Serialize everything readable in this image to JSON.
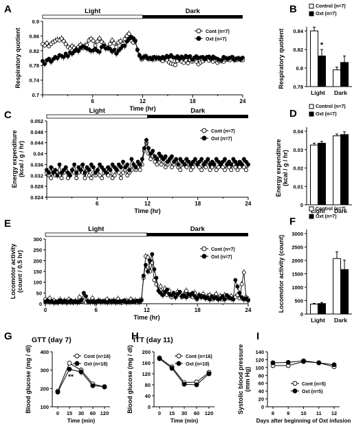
{
  "panel_letters": [
    "A",
    "B",
    "C",
    "D",
    "E",
    "F",
    "G",
    "H",
    "I"
  ],
  "chart_data": [
    {
      "panel": "A",
      "type": "line",
      "xlabel": "Time (hr)",
      "ylabel": "Respiratory quotient",
      "xlim": [
        0,
        24
      ],
      "ylim": [
        0.7,
        0.9
      ],
      "xticks": [
        "6",
        "12",
        "18",
        "24"
      ],
      "yticks": [
        "0.7",
        "0.74",
        "0.78",
        "0.82",
        "0.86",
        "0.9"
      ],
      "bands": {
        "light": "Light",
        "dark": "Dark"
      },
      "series": [
        {
          "name": "Cont (n=7)",
          "marker": "open",
          "values": [
            0.838,
            0.834,
            0.84,
            0.832,
            0.838,
            0.843,
            0.846,
            0.85,
            0.848,
            0.853,
            0.846,
            0.838,
            0.83,
            0.826,
            0.832,
            0.828,
            0.822,
            0.83,
            0.836,
            0.827,
            0.833,
            0.836,
            0.848,
            0.852,
            0.847,
            0.834,
            0.845,
            0.853,
            0.844,
            0.838,
            0.83,
            0.826,
            0.838,
            0.848,
            0.84,
            0.83,
            0.842,
            0.846,
            0.838,
            0.852,
            0.86,
            0.866,
            0.848,
            0.842,
            0.848,
            0.822,
            0.806,
            0.796,
            0.803,
            0.801,
            0.798,
            0.797,
            0.799,
            0.796,
            0.8,
            0.798,
            0.796,
            0.792,
            0.798,
            0.794,
            0.788,
            0.785,
            0.783,
            0.781,
            0.792,
            0.797,
            0.79,
            0.787,
            0.794,
            0.786,
            0.795,
            0.79,
            0.798,
            0.79,
            0.783,
            0.788,
            0.791,
            0.796,
            0.799,
            0.793,
            0.796,
            0.79,
            0.794,
            0.787,
            0.791,
            0.794,
            0.79,
            0.795,
            0.797,
            0.794,
            0.8,
            0.798,
            0.794,
            0.798,
            0.795,
            0.794
          ]
        },
        {
          "name": "Oxt (n=7)",
          "marker": "filled",
          "values": [
            0.792,
            0.784,
            0.794,
            0.798,
            0.79,
            0.797,
            0.803,
            0.8,
            0.808,
            0.806,
            0.803,
            0.812,
            0.805,
            0.815,
            0.812,
            0.818,
            0.824,
            0.819,
            0.828,
            0.832,
            0.83,
            0.826,
            0.824,
            0.82,
            0.821,
            0.826,
            0.82,
            0.817,
            0.83,
            0.834,
            0.826,
            0.828,
            0.825,
            0.818,
            0.822,
            0.812,
            0.82,
            0.826,
            0.833,
            0.833,
            0.845,
            0.852,
            0.858,
            0.854,
            0.846,
            0.823,
            0.808,
            0.8,
            0.802,
            0.806,
            0.799,
            0.801,
            0.797,
            0.803,
            0.8,
            0.802,
            0.799,
            0.803,
            0.8,
            0.806,
            0.803,
            0.808,
            0.802,
            0.801,
            0.805,
            0.799,
            0.804,
            0.8,
            0.806,
            0.803,
            0.805,
            0.796,
            0.801,
            0.805,
            0.8,
            0.802,
            0.803,
            0.798,
            0.803,
            0.804,
            0.799,
            0.804,
            0.8,
            0.798,
            0.795,
            0.794,
            0.803,
            0.8,
            0.798,
            0.801,
            0.803,
            0.795,
            0.799,
            0.8,
            0.797,
            0.801
          ]
        }
      ]
    },
    {
      "panel": "B",
      "type": "bar",
      "ylabel": "Respiratory quotient",
      "ylim": [
        0.78,
        0.84
      ],
      "yticks": [
        "0.78",
        "0.8",
        "0.82",
        "0.84"
      ],
      "categories": [
        "Light",
        "Dark"
      ],
      "series": [
        {
          "name": "Control (n=7)",
          "fill": "open",
          "values": [
            0.84,
            0.798
          ],
          "errors": [
            0.004,
            0.003
          ]
        },
        {
          "name": "Oxt (n=7)",
          "fill": "filled",
          "values": [
            0.813,
            0.806
          ],
          "errors": [
            0.007,
            0.007
          ]
        }
      ],
      "annotations": [
        "*"
      ]
    },
    {
      "panel": "C",
      "type": "line",
      "xlabel": "Time (hr)",
      "ylabel": "Energy expenditure (kcal / g / hr)",
      "xlim": [
        0,
        24
      ],
      "ylim": [
        0.024,
        0.052
      ],
      "xticks": [
        "6",
        "12",
        "18",
        "24"
      ],
      "yticks": [
        "0.024",
        "0.028",
        "0.032",
        "0.036",
        "0.04",
        "0.044",
        "0.048",
        "0.052"
      ],
      "bands": {
        "light": "Light",
        "dark": "Dark"
      },
      "series": [
        {
          "name": "Cont (n=7)",
          "marker": "open",
          "values": [
            0.033,
            0.032,
            0.031,
            0.034,
            0.032,
            0.033,
            0.032,
            0.031,
            0.033,
            0.034,
            0.031,
            0.032,
            0.034,
            0.033,
            0.031,
            0.033,
            0.035,
            0.033,
            0.031,
            0.034,
            0.032,
            0.031,
            0.033,
            0.032,
            0.034,
            0.032,
            0.031,
            0.033,
            0.034,
            0.032,
            0.033,
            0.031,
            0.032,
            0.034,
            0.033,
            0.031,
            0.033,
            0.034,
            0.032,
            0.033,
            0.034,
            0.036,
            0.034,
            0.035,
            0.034,
            0.036,
            0.041,
            0.044,
            0.04,
            0.038,
            0.039,
            0.037,
            0.036,
            0.038,
            0.036,
            0.037,
            0.035,
            0.036,
            0.038,
            0.035,
            0.036,
            0.037,
            0.035,
            0.034,
            0.036,
            0.037,
            0.035,
            0.036,
            0.034,
            0.035,
            0.037,
            0.036,
            0.035,
            0.034,
            0.036,
            0.035,
            0.037,
            0.034,
            0.035,
            0.036,
            0.034,
            0.035,
            0.036,
            0.035,
            0.034,
            0.036,
            0.035,
            0.034,
            0.036,
            0.035,
            0.034,
            0.035,
            0.036,
            0.035,
            0.034,
            0.036
          ]
        },
        {
          "name": "Oxt (n=7)",
          "marker": "filled",
          "values": [
            0.034,
            0.033,
            0.035,
            0.033,
            0.034,
            0.032,
            0.036,
            0.033,
            0.034,
            0.035,
            0.033,
            0.032,
            0.034,
            0.036,
            0.033,
            0.035,
            0.034,
            0.036,
            0.033,
            0.035,
            0.034,
            0.036,
            0.035,
            0.033,
            0.034,
            0.036,
            0.035,
            0.034,
            0.033,
            0.035,
            0.034,
            0.036,
            0.035,
            0.034,
            0.036,
            0.035,
            0.037,
            0.035,
            0.036,
            0.034,
            0.038,
            0.036,
            0.035,
            0.037,
            0.036,
            0.038,
            0.042,
            0.045,
            0.042,
            0.04,
            0.041,
            0.039,
            0.038,
            0.04,
            0.039,
            0.038,
            0.039,
            0.037,
            0.038,
            0.039,
            0.037,
            0.038,
            0.036,
            0.038,
            0.037,
            0.036,
            0.038,
            0.037,
            0.036,
            0.037,
            0.038,
            0.036,
            0.037,
            0.038,
            0.036,
            0.037,
            0.038,
            0.036,
            0.037,
            0.036,
            0.038,
            0.037,
            0.036,
            0.037,
            0.038,
            0.036,
            0.037,
            0.036,
            0.038,
            0.037,
            0.036,
            0.037,
            0.036,
            0.038,
            0.037,
            0.036
          ]
        }
      ]
    },
    {
      "panel": "D",
      "type": "bar",
      "ylabel": "Energy expenditure (kcal / g / hr)",
      "ylim": [
        0,
        0.04
      ],
      "yticks": [
        "0",
        "0.01",
        "0.02",
        "0.03",
        "0.04"
      ],
      "categories": [
        "Light",
        "Dark"
      ],
      "series": [
        {
          "name": "Control (n=7)",
          "fill": "open",
          "values": [
            0.0325,
            0.0375
          ],
          "errors": [
            0.001,
            0.001
          ]
        },
        {
          "name": "Oxt (n=7)",
          "fill": "filled",
          "values": [
            0.0335,
            0.0382
          ],
          "errors": [
            0.001,
            0.0015
          ]
        }
      ]
    },
    {
      "panel": "E",
      "type": "line",
      "xlabel": "Time (hr)",
      "ylabel": "Locomotor activity (count / 0.5 hr)",
      "xlim": [
        0,
        24
      ],
      "ylim": [
        0,
        300
      ],
      "xticks": [
        "0",
        "6",
        "12",
        "18",
        "24"
      ],
      "yticks": [
        "0",
        "50",
        "100",
        "150",
        "200",
        "250",
        "300"
      ],
      "bands": {
        "light": "Light",
        "dark": "Dark"
      },
      "series": [
        {
          "name": "Cont (n=7)",
          "marker": "open",
          "values": [
            20,
            12,
            25,
            8,
            15,
            5,
            10,
            18,
            6,
            14,
            8,
            20,
            10,
            5,
            12,
            8,
            30,
            10,
            15,
            6,
            12,
            8,
            25,
            10,
            6,
            14,
            10,
            8,
            12,
            20,
            6,
            10,
            15,
            8,
            22,
            10,
            6,
            12,
            14,
            8,
            20,
            10,
            15,
            6,
            12,
            20,
            120,
            220,
            215,
            150,
            190,
            110,
            90,
            60,
            80,
            50,
            70,
            40,
            60,
            30,
            45,
            35,
            55,
            40,
            30,
            45,
            60,
            35,
            40,
            30,
            50,
            20,
            40,
            30,
            45,
            25,
            35,
            40,
            20,
            30,
            45,
            25,
            35,
            20,
            40,
            30,
            25,
            35,
            20,
            30,
            40,
            25,
            90,
            145,
            30,
            20
          ]
        },
        {
          "name": "Oxt (n=7)",
          "marker": "filled",
          "values": [
            10,
            15,
            8,
            12,
            5,
            10,
            6,
            14,
            8,
            12,
            5,
            10,
            15,
            8,
            12,
            6,
            10,
            18,
            50,
            35,
            10,
            8,
            12,
            6,
            10,
            15,
            8,
            12,
            10,
            6,
            14,
            8,
            12,
            6,
            10,
            8,
            12,
            15,
            6,
            10,
            8,
            12,
            10,
            14,
            8,
            15,
            130,
            180,
            150,
            200,
            230,
            160,
            120,
            60,
            50,
            40,
            55,
            65,
            45,
            40,
            50,
            30,
            45,
            55,
            35,
            40,
            30,
            45,
            40,
            50,
            35,
            25,
            40,
            30,
            35,
            25,
            30,
            20,
            35,
            25,
            30,
            20,
            25,
            35,
            20,
            40,
            30,
            25,
            20,
            110,
            80,
            50,
            30,
            20,
            25,
            15
          ]
        }
      ]
    },
    {
      "panel": "F",
      "type": "bar",
      "ylabel": "Locomotor activity (count)",
      "ylim": [
        0,
        3000
      ],
      "yticks": [
        "0",
        "500",
        "1000",
        "1500",
        "2000",
        "2500",
        "3000"
      ],
      "categories": [
        "Light",
        "Dark"
      ],
      "series": [
        {
          "name": "Control (n=7)",
          "fill": "open",
          "values": [
            370,
            2070
          ],
          "errors": [
            30,
            250
          ]
        },
        {
          "name": "Oxt (n=7)",
          "fill": "filled",
          "values": [
            390,
            1660
          ],
          "errors": [
            40,
            350
          ]
        }
      ]
    },
    {
      "panel": "G",
      "type": "line",
      "title": "GTT (day 7)",
      "xlabel": "Time (min)",
      "ylabel": "Blood glucose (mg / dl)",
      "categories": [
        "0",
        "15",
        "30",
        "60",
        "120"
      ],
      "ylim": [
        100,
        400
      ],
      "yticks": [
        "100",
        "200",
        "300",
        "400"
      ],
      "series": [
        {
          "name": "Cont (n=16)",
          "marker": "open",
          "values": [
            185,
            338,
            300,
            225,
            208
          ],
          "errors": [
            8,
            10,
            15,
            12,
            8
          ]
        },
        {
          "name": "Oxt (n=18)",
          "marker": "filled",
          "values": [
            180,
            305,
            290,
            215,
            210
          ],
          "errors": [
            8,
            12,
            18,
            12,
            8
          ]
        }
      ],
      "annotations": [
        "**"
      ]
    },
    {
      "panel": "H",
      "type": "line",
      "title": "ITT (day 11)",
      "xlabel": "Time (min)",
      "ylabel": "Blood glucose (mg / dl)",
      "categories": [
        "0",
        "15",
        "30",
        "60",
        "120"
      ],
      "ylim": [
        0,
        200
      ],
      "yticks": [
        "0",
        "40",
        "80",
        "120",
        "160",
        "200"
      ],
      "series": [
        {
          "name": "Cont (n=16)",
          "marker": "open",
          "values": [
            178,
            145,
            88,
            90,
            125
          ],
          "errors": [
            6,
            8,
            6,
            8,
            8
          ]
        },
        {
          "name": "Oxt (n=18)",
          "marker": "filled",
          "values": [
            175,
            140,
            82,
            80,
            120
          ],
          "errors": [
            6,
            8,
            6,
            8,
            8
          ]
        }
      ]
    },
    {
      "panel": "I",
      "type": "line",
      "xlabel": "Days after beginning of Oxt infusion",
      "ylabel": "Systolic blood pressure (mm Hg)",
      "categories": [
        "8",
        "9",
        "10",
        "11",
        "12"
      ],
      "ylim": [
        0,
        140
      ],
      "yticks": [
        "0",
        "20",
        "40",
        "60",
        "80",
        "100",
        "120",
        "140"
      ],
      "series": [
        {
          "name": "Cont (n=5)",
          "marker": "open",
          "values": [
            105,
            105,
            115,
            112,
            102
          ],
          "errors": [
            5,
            6,
            4,
            5,
            4
          ]
        },
        {
          "name": "Oxt (n=5)",
          "marker": "filled",
          "values": [
            112,
            113,
            117,
            112,
            107
          ],
          "errors": [
            4,
            5,
            4,
            4,
            4
          ]
        }
      ]
    }
  ]
}
